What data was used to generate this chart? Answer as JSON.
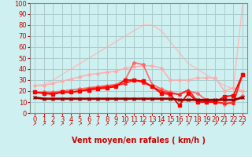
{
  "title": "",
  "xlabel": "Vent moyen/en rafales ( km/h )",
  "ylabel": "",
  "bg_color": "#cef0f0",
  "grid_color": "#aacccc",
  "xlim": [
    -0.5,
    23.5
  ],
  "ylim": [
    0,
    100
  ],
  "yticks": [
    0,
    10,
    20,
    30,
    40,
    50,
    60,
    70,
    80,
    90,
    100
  ],
  "xticks": [
    0,
    1,
    2,
    3,
    4,
    5,
    6,
    7,
    8,
    9,
    10,
    11,
    12,
    13,
    14,
    15,
    16,
    17,
    18,
    19,
    20,
    21,
    22,
    23
  ],
  "series": [
    {
      "x": [
        0,
        1,
        2,
        3,
        4,
        5,
        6,
        7,
        8,
        9,
        10,
        11,
        12,
        13,
        14,
        15,
        16,
        17,
        18,
        19,
        20,
        21,
        22,
        23
      ],
      "y": [
        25,
        26,
        30,
        35,
        40,
        45,
        50,
        55,
        60,
        65,
        70,
        75,
        80,
        80,
        75,
        65,
        55,
        45,
        40,
        35,
        30,
        25,
        22,
        98
      ],
      "color": "#ffbbbb",
      "lw": 1.0,
      "marker": null,
      "ms": 0,
      "zorder": 1
    },
    {
      "x": [
        0,
        1,
        2,
        3,
        4,
        5,
        6,
        7,
        8,
        9,
        10,
        11,
        12,
        13,
        14,
        15,
        16,
        17,
        18,
        19,
        20,
        21,
        22,
        23
      ],
      "y": [
        25,
        25,
        27,
        29,
        31,
        33,
        35,
        36,
        37,
        38,
        41,
        42,
        43,
        43,
        41,
        30,
        30,
        30,
        32,
        32,
        32,
        20,
        23,
        20
      ],
      "color": "#ffaaaa",
      "lw": 1.0,
      "marker": "D",
      "ms": 2.0,
      "zorder": 2
    },
    {
      "x": [
        0,
        1,
        2,
        3,
        4,
        5,
        6,
        7,
        8,
        9,
        10,
        11,
        12,
        13,
        14,
        15,
        16,
        17,
        18,
        19,
        20,
        21,
        22,
        23
      ],
      "y": [
        19,
        19,
        19,
        20,
        21,
        22,
        23,
        24,
        25,
        26,
        30,
        46,
        44,
        26,
        22,
        19,
        17,
        20,
        18,
        12,
        10,
        8,
        10,
        16
      ],
      "color": "#ff6666",
      "lw": 1.2,
      "marker": "D",
      "ms": 2.0,
      "zorder": 3
    },
    {
      "x": [
        0,
        1,
        2,
        3,
        4,
        5,
        6,
        7,
        8,
        9,
        10,
        11,
        12,
        13,
        14,
        15,
        16,
        17,
        18,
        19,
        20,
        21,
        22,
        23
      ],
      "y": [
        19,
        18,
        18,
        19,
        19,
        20,
        22,
        23,
        24,
        25,
        27,
        30,
        28,
        24,
        20,
        18,
        17,
        21,
        11,
        11,
        10,
        9,
        9,
        35
      ],
      "color": "#ff2222",
      "lw": 1.3,
      "marker": "^",
      "ms": 2.5,
      "zorder": 3
    },
    {
      "x": [
        0,
        1,
        2,
        3,
        4,
        5,
        6,
        7,
        8,
        9,
        10,
        11,
        12,
        13,
        14,
        15,
        16,
        17,
        18,
        19,
        20,
        21,
        22,
        23
      ],
      "y": [
        19,
        18,
        17,
        19,
        19,
        20,
        21,
        22,
        23,
        24,
        30,
        30,
        29,
        24,
        18,
        17,
        7,
        18,
        10,
        10,
        10,
        15,
        16,
        35
      ],
      "color": "#ff0000",
      "lw": 1.3,
      "marker": "s",
      "ms": 2.5,
      "zorder": 3
    },
    {
      "x": [
        0,
        1,
        2,
        3,
        4,
        5,
        6,
        7,
        8,
        9,
        10,
        11,
        12,
        13,
        14,
        15,
        16,
        17,
        18,
        19,
        20,
        21,
        22,
        23
      ],
      "y": [
        14,
        13,
        13,
        13,
        13,
        13,
        13,
        13,
        13,
        13,
        13,
        13,
        13,
        13,
        13,
        13,
        12,
        12,
        12,
        12,
        12,
        12,
        12,
        14
      ],
      "color": "#990000",
      "lw": 2.0,
      "marker": "x",
      "ms": 2.5,
      "zorder": 4
    }
  ],
  "wind_arrow_color": "#cc0000",
  "xlabel_color": "#cc0000",
  "xlabel_fontsize": 7,
  "tick_fontsize": 6,
  "ytick_color": "#cc0000",
  "xtick_color": "#cc0000",
  "spine_color": "#888888"
}
